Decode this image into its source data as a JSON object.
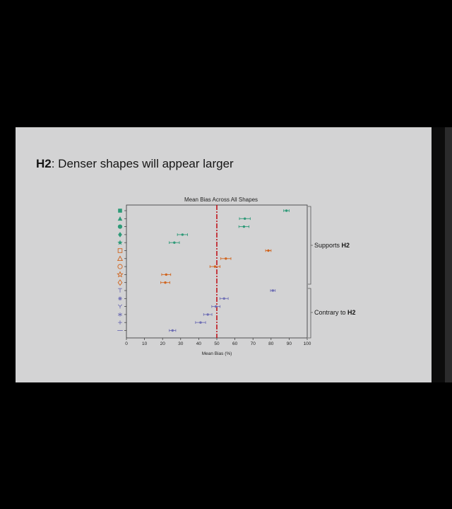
{
  "slide": {
    "title_bold": "H2",
    "title_rest": ": Denser shapes will appear larger"
  },
  "annotations": {
    "supports_text": "Supports ",
    "supports_bold": "H2",
    "contrary_text": "Contrary to ",
    "contrary_bold": "H2"
  },
  "colors": {
    "green": "#2e9a78",
    "orange": "#d0641e",
    "purple": "#6f6fb4",
    "reference_line": "#c0141c"
  },
  "chart_data": {
    "type": "scatter",
    "title": "Mean Bias Across All Shapes",
    "xlabel": "Mean Bias (%)",
    "ylabel": "",
    "xlim": [
      0,
      100
    ],
    "xticks": [
      0,
      10,
      20,
      30,
      40,
      50,
      60,
      70,
      80,
      90,
      100
    ],
    "reference_line_x": 50,
    "grid": false,
    "rows": [
      {
        "shape": "filled-square",
        "group": "green",
        "mean": 88.5,
        "err": 1.5
      },
      {
        "shape": "filled-triangle",
        "group": "green",
        "mean": 65.5,
        "err": 3
      },
      {
        "shape": "filled-circle",
        "group": "green",
        "mean": 65,
        "err": 2.8
      },
      {
        "shape": "filled-diamond",
        "group": "green",
        "mean": 31,
        "err": 2.8
      },
      {
        "shape": "filled-star",
        "group": "green",
        "mean": 26.5,
        "err": 2.8
      },
      {
        "shape": "open-square",
        "group": "orange",
        "mean": 78.5,
        "err": 1.5
      },
      {
        "shape": "open-triangle",
        "group": "orange",
        "mean": 55,
        "err": 2.8
      },
      {
        "shape": "open-circle",
        "group": "orange",
        "mean": 49,
        "err": 2.8
      },
      {
        "shape": "open-star",
        "group": "orange",
        "mean": 22,
        "err": 2.5
      },
      {
        "shape": "open-diamond",
        "group": "orange",
        "mean": 21.5,
        "err": 2.5
      },
      {
        "shape": "t-shape",
        "group": "purple",
        "mean": 81,
        "err": 1.3
      },
      {
        "shape": "asterisk-circle",
        "group": "purple",
        "mean": 54,
        "err": 2.3
      },
      {
        "shape": "y-shape",
        "group": "purple",
        "mean": 49.5,
        "err": 2.3
      },
      {
        "shape": "asterisk",
        "group": "purple",
        "mean": 45,
        "err": 2.3
      },
      {
        "shape": "plus",
        "group": "purple",
        "mean": 41,
        "err": 2.8
      },
      {
        "shape": "dash",
        "group": "purple",
        "mean": 25.5,
        "err": 1.8
      }
    ]
  }
}
